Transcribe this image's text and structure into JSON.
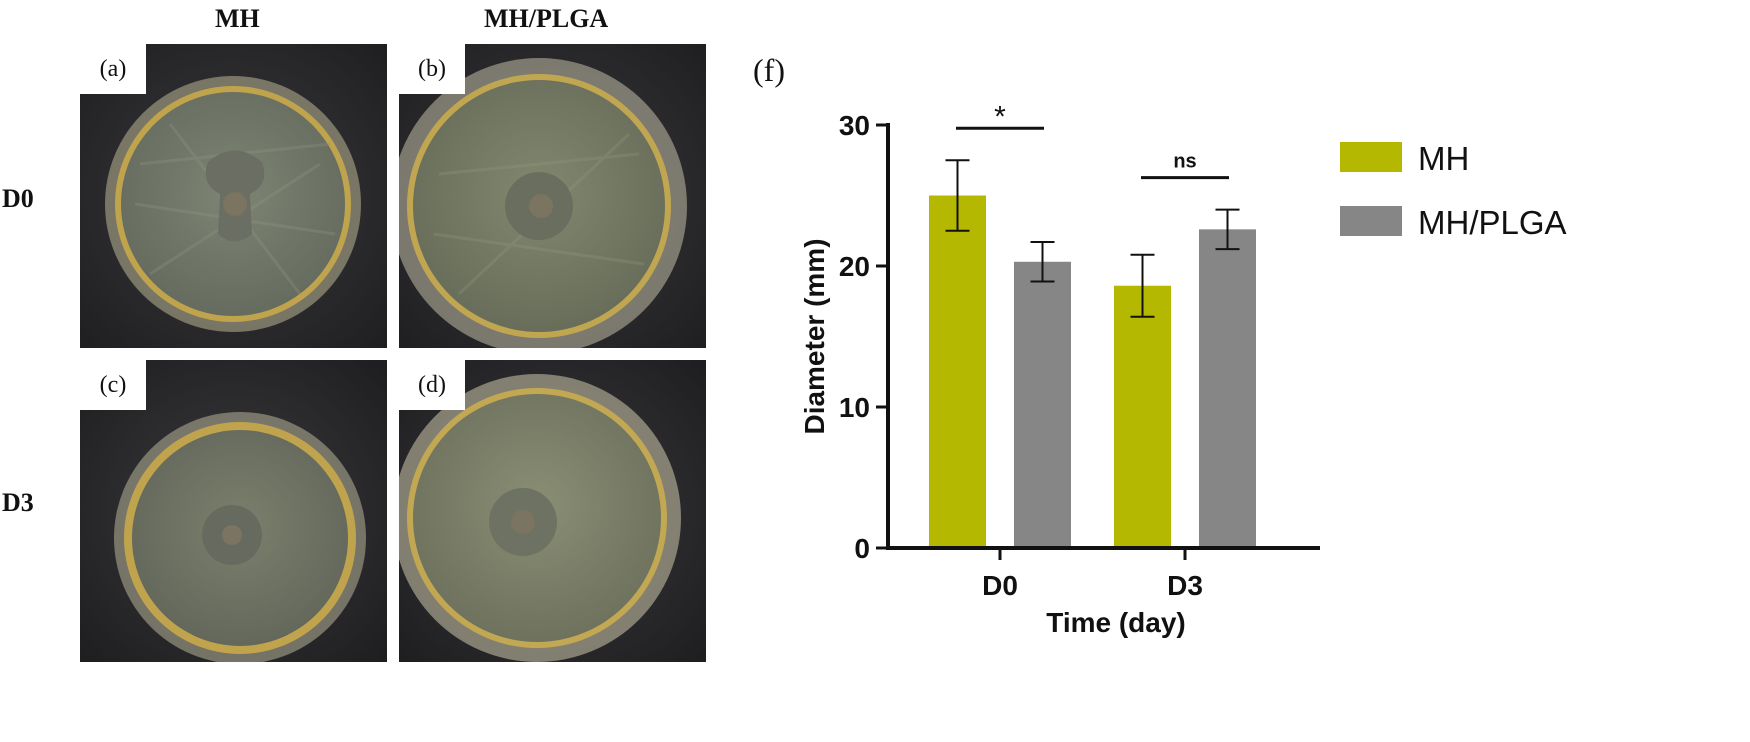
{
  "figure": {
    "column_headers": [
      "MH",
      "MH/PLGA"
    ],
    "row_headers": [
      "D0",
      "D3"
    ],
    "panels": [
      {
        "label": "(a)",
        "group": "MH",
        "day": "D0"
      },
      {
        "label": "(b)",
        "group": "MH/PLGA",
        "day": "D0"
      },
      {
        "label": "(c)",
        "group": "MH",
        "day": "D3"
      },
      {
        "label": "(d)",
        "group": "MH/PLGA",
        "day": "D3"
      }
    ],
    "chart_panel_label": "(f)"
  },
  "chart_data": {
    "type": "bar",
    "categories": [
      "D0",
      "D3"
    ],
    "series": [
      {
        "name": "MH",
        "color": "#B5B800",
        "values": [
          25.0,
          18.6
        ],
        "errors": [
          2.5,
          2.2
        ]
      },
      {
        "name": "MH/PLGA",
        "color": "#868686",
        "values": [
          20.3,
          22.6
        ],
        "errors": [
          1.4,
          1.4
        ]
      }
    ],
    "xlabel": "Time (day)",
    "ylabel": "Diameter (mm)",
    "ylim": [
      0,
      30
    ],
    "yticks": [
      0,
      10,
      20,
      30
    ],
    "significance": [
      {
        "category": "D0",
        "label": "*"
      },
      {
        "category": "D3",
        "label": "ns"
      }
    ],
    "legend_position": "top-right",
    "grid": false
  }
}
